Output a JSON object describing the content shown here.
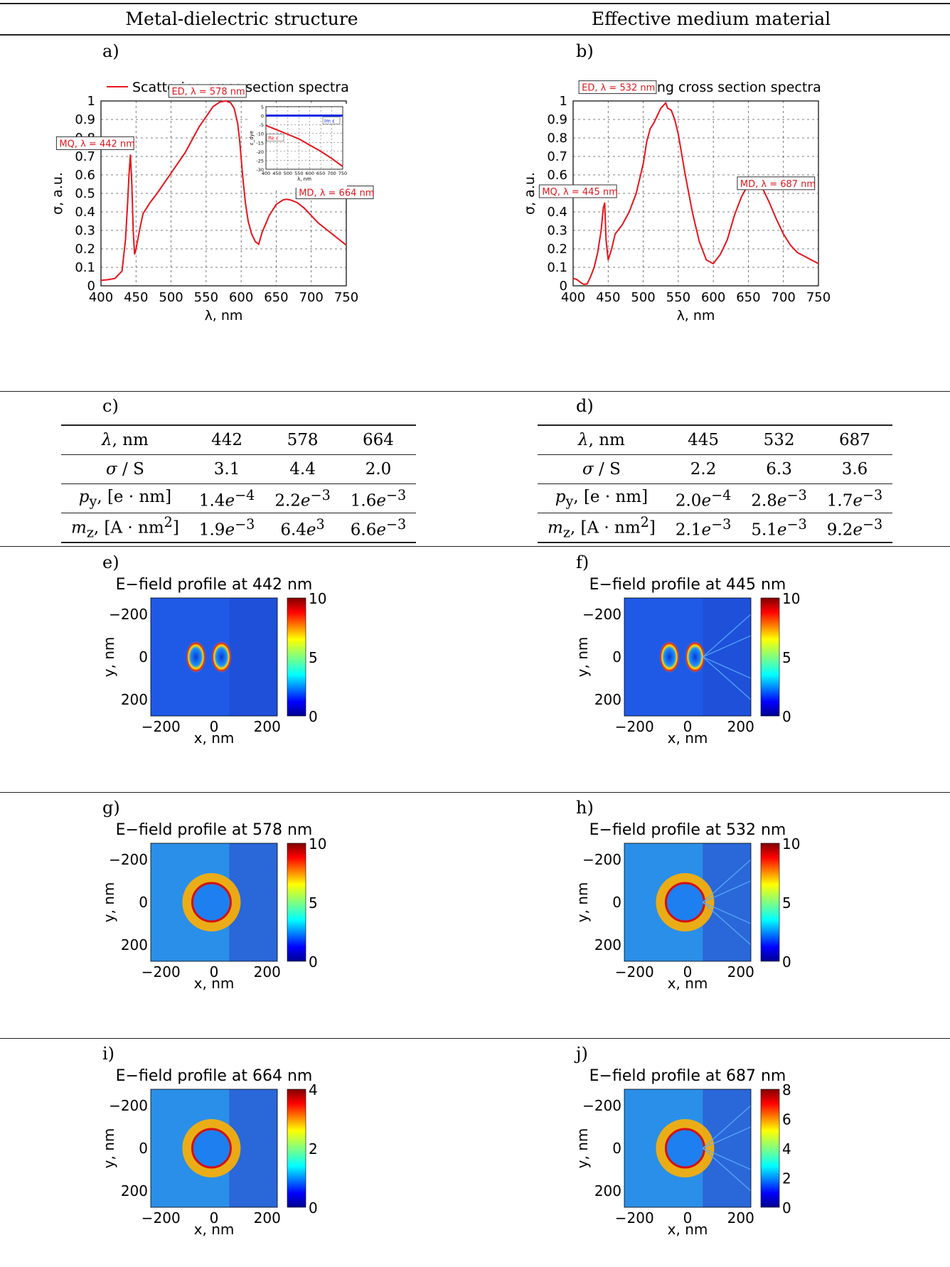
{
  "header": {
    "left_title": "Metal-dielectric structure",
    "right_title": "Effective medium material"
  },
  "panel_labels": {
    "a": "a)",
    "b": "b)",
    "c": "c)",
    "d": "d)",
    "e": "e)",
    "f": "f)",
    "g": "g)",
    "h": "h)",
    "i": "i)",
    "j": "j)"
  },
  "colors": {
    "curve": "#e8141c",
    "inset_blue": "#1226e6",
    "grid": "#555555"
  },
  "chart_data": [
    {
      "id": "a",
      "type": "line",
      "legend": "Scattering cross section spectra",
      "xlabel": "λ, nm",
      "ylabel": "σ, a.u.",
      "xlim": [
        400,
        750
      ],
      "ylim": [
        0,
        1
      ],
      "xticks": [
        400,
        450,
        500,
        550,
        600,
        650,
        700,
        750
      ],
      "yticks": [
        0,
        0.1,
        0.2,
        0.3,
        0.4,
        0.5,
        0.6,
        0.7,
        0.8,
        0.9,
        1
      ],
      "grid": true,
      "series": [
        {
          "x": [
            400,
            410,
            420,
            430,
            435,
            438,
            440,
            442,
            444,
            446,
            448,
            450,
            455,
            460,
            470,
            480,
            500,
            520,
            540,
            560,
            570,
            578,
            585,
            590,
            595,
            598,
            602,
            606,
            610,
            615,
            620,
            625,
            630,
            640,
            650,
            660,
            665,
            670,
            680,
            690,
            700,
            710,
            720,
            730,
            740,
            750
          ],
          "y": [
            0.03,
            0.033,
            0.04,
            0.08,
            0.25,
            0.45,
            0.6,
            0.71,
            0.55,
            0.3,
            0.17,
            0.2,
            0.3,
            0.39,
            0.45,
            0.5,
            0.61,
            0.72,
            0.86,
            0.97,
            0.995,
            1.0,
            0.99,
            0.96,
            0.88,
            0.78,
            0.6,
            0.45,
            0.35,
            0.28,
            0.24,
            0.225,
            0.29,
            0.38,
            0.44,
            0.465,
            0.468,
            0.465,
            0.45,
            0.42,
            0.38,
            0.34,
            0.31,
            0.28,
            0.25,
            0.22
          ]
        }
      ],
      "annotations": [
        {
          "text": "MQ, λ = 442 nm",
          "x": 442,
          "y": 0.71
        },
        {
          "text": "ED, λ = 578 nm",
          "x": 578,
          "y": 1.0
        },
        {
          "text": "MD, λ = 664 nm",
          "x": 664,
          "y": 0.467
        }
      ],
      "inset": {
        "xlim": [
          400,
          750
        ],
        "ylim": [
          -30,
          5
        ],
        "xticks": [
          400,
          450,
          500,
          550,
          600,
          650,
          700,
          750
        ],
        "yticks": [
          5,
          0,
          -5,
          -10,
          -15,
          -20,
          -25,
          -30
        ],
        "xlabel": "λ, nm",
        "ylabel": "ε_dye",
        "series": [
          {
            "name": "Im ε",
            "x": [
              400,
              750
            ],
            "y": [
              0,
              0
            ]
          },
          {
            "name": "Re ε",
            "x": [
              400,
              450,
              500,
              550,
              600,
              650,
              700,
              750
            ],
            "y": [
              -5.5,
              -8,
              -10.5,
              -13,
              -16.5,
              -20,
              -24,
              -28.5
            ]
          }
        ]
      }
    },
    {
      "id": "b",
      "type": "line",
      "legend": "Scattering cross section spectra",
      "xlabel": "λ, nm",
      "ylabel": "σ, a.u.",
      "xlim": [
        400,
        750
      ],
      "ylim": [
        0,
        1
      ],
      "xticks": [
        400,
        450,
        500,
        550,
        600,
        650,
        700,
        750
      ],
      "yticks": [
        0,
        0.1,
        0.2,
        0.3,
        0.4,
        0.5,
        0.6,
        0.7,
        0.8,
        0.9,
        1
      ],
      "grid": true,
      "series": [
        {
          "x": [
            400,
            405,
            410,
            415,
            420,
            425,
            430,
            435,
            440,
            443,
            445,
            447,
            450,
            455,
            460,
            470,
            480,
            490,
            500,
            505,
            510,
            515,
            520,
            525,
            530,
            532,
            535,
            540,
            545,
            550,
            560,
            570,
            580,
            590,
            600,
            610,
            620,
            630,
            640,
            650,
            655,
            660,
            665,
            670,
            680,
            690,
            700,
            710,
            720,
            730,
            740,
            750
          ],
          "y": [
            0.04,
            0.035,
            0.02,
            0.008,
            0.01,
            0.05,
            0.1,
            0.18,
            0.3,
            0.42,
            0.45,
            0.25,
            0.14,
            0.2,
            0.28,
            0.33,
            0.4,
            0.5,
            0.66,
            0.78,
            0.85,
            0.88,
            0.92,
            0.96,
            0.98,
            0.99,
            0.96,
            0.95,
            0.9,
            0.82,
            0.6,
            0.4,
            0.24,
            0.14,
            0.12,
            0.17,
            0.25,
            0.38,
            0.48,
            0.55,
            0.56,
            0.57,
            0.56,
            0.53,
            0.45,
            0.36,
            0.28,
            0.22,
            0.18,
            0.16,
            0.14,
            0.12
          ]
        }
      ],
      "annotations": [
        {
          "text": "MQ, λ = 445 nm",
          "x": 445,
          "y": 0.45
        },
        {
          "text": "ED, λ = 532 nm",
          "x": 532,
          "y": 0.99
        },
        {
          "text": "MD, λ = 687 nm",
          "x": 687,
          "y": 0.47
        }
      ]
    }
  ],
  "tables": {
    "c": {
      "rows": [
        {
          "label": "λ, nm",
          "v": [
            "442",
            "578",
            "664"
          ]
        },
        {
          "label": "σ / S",
          "v": [
            "3.1",
            "4.4",
            "2.0"
          ]
        },
        {
          "label": "p_y, [e · nm]",
          "v": [
            "1.4e−4",
            "2.2e−3",
            "1.6e−3"
          ]
        },
        {
          "label": "m_z, [A · nm²]",
          "v": [
            "1.9e−3",
            "6.4e3",
            "6.6e−3"
          ]
        }
      ]
    },
    "d": {
      "rows": [
        {
          "label": "λ, nm",
          "v": [
            "445",
            "532",
            "687"
          ]
        },
        {
          "label": "σ / S",
          "v": [
            "2.2",
            "6.3",
            "3.6"
          ]
        },
        {
          "label": "p_y, [e · nm]",
          "v": [
            "2.0e−4",
            "2.8e−3",
            "1.7e−3"
          ]
        },
        {
          "label": "m_z, [A · nm²]",
          "v": [
            "2.1e−3",
            "5.1e−3",
            "9.2e−3"
          ]
        }
      ]
    }
  },
  "field_maps": [
    {
      "id": "e",
      "title": "E−field profile at 442 nm",
      "cbar": [
        "10",
        "5",
        "0"
      ],
      "xlabel": "x, nm",
      "ylabel": "y, nm",
      "xticks": [
        "−200",
        "0",
        "200"
      ],
      "yticks": [
        "−200",
        "0",
        "200"
      ]
    },
    {
      "id": "f",
      "title": "E−field profile at 445 nm",
      "cbar": [
        "10",
        "5",
        "0"
      ],
      "xlabel": "x, nm",
      "ylabel": "y, nm",
      "xticks": [
        "−200",
        "0",
        "200"
      ],
      "yticks": [
        "−200",
        "0",
        "200"
      ]
    },
    {
      "id": "g",
      "title": "E−field profile at 578 nm",
      "cbar": [
        "10",
        "5",
        "0"
      ],
      "xlabel": "x, nm",
      "ylabel": "y, nm",
      "xticks": [
        "−200",
        "0",
        "200"
      ],
      "yticks": [
        "−200",
        "0",
        "200"
      ]
    },
    {
      "id": "h",
      "title": "E−field profile at 532 nm",
      "cbar": [
        "10",
        "5",
        "0"
      ],
      "xlabel": "x, nm",
      "ylabel": "y, nm",
      "xticks": [
        "−200",
        "0",
        "200"
      ],
      "yticks": [
        "−200",
        "0",
        "200"
      ]
    },
    {
      "id": "i",
      "title": "E−field profile at 664 nm",
      "cbar": [
        "4",
        "2",
        "0"
      ],
      "xlabel": "x, nm",
      "ylabel": "y, nm",
      "xticks": [
        "−200",
        "0",
        "200"
      ],
      "yticks": [
        "−200",
        "0",
        "200"
      ]
    },
    {
      "id": "j",
      "title": "E−field profile at 687 nm",
      "cbar": [
        "8",
        "6",
        "4",
        "2",
        "0"
      ],
      "xlabel": "x, nm",
      "ylabel": "y, nm",
      "xticks": [
        "−200",
        "0",
        "200"
      ],
      "yticks": [
        "−200",
        "0",
        "200"
      ]
    }
  ]
}
